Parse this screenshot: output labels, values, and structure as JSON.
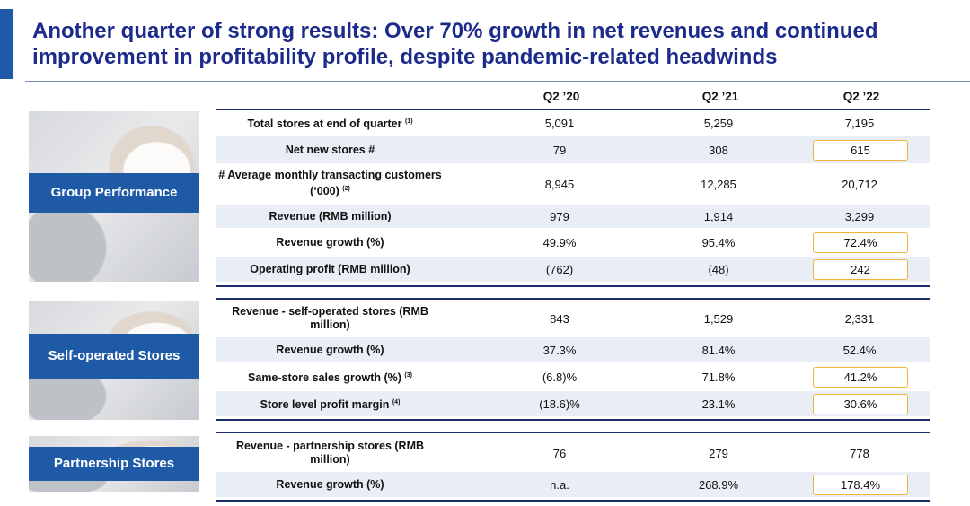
{
  "title": "Another quarter of strong results: Over 70% growth in net revenues and continued improvement in profitability profile, despite pandemic-related headwinds",
  "columns": [
    "Q2 ’20",
    "Q2 ’21",
    "Q2 ’22"
  ],
  "sections": {
    "group": {
      "label": "Group Performance",
      "rows": [
        {
          "metric": "Total stores at end of quarter",
          "note": "(1)",
          "v": [
            "5,091",
            "5,259",
            "7,195"
          ]
        },
        {
          "metric": "Net new stores #",
          "note": "",
          "v": [
            "79",
            "308",
            "615"
          ]
        },
        {
          "metric": "# Average monthly transacting customers (‘000)",
          "note": "(2)",
          "v": [
            "8,945",
            "12,285",
            "20,712"
          ]
        },
        {
          "metric": "Revenue (RMB million)",
          "note": "",
          "v": [
            "979",
            "1,914",
            "3,299"
          ]
        },
        {
          "metric": "Revenue growth (%)",
          "note": "",
          "v": [
            "49.9%",
            "95.4%",
            "72.4%"
          ]
        },
        {
          "metric": "Operating profit (RMB million)",
          "note": "",
          "v": [
            "(762)",
            "(48)",
            "242"
          ]
        }
      ]
    },
    "self": {
      "label": "Self-operated Stores",
      "rows": [
        {
          "metric": "Revenue - self-operated stores (RMB million)",
          "note": "",
          "v": [
            "843",
            "1,529",
            "2,331"
          ]
        },
        {
          "metric": "Revenue growth (%)",
          "note": "",
          "v": [
            "37.3%",
            "81.4%",
            "52.4%"
          ]
        },
        {
          "metric": "Same-store sales growth (%)",
          "note": "(3)",
          "v": [
            "(6.8)%",
            "71.8%",
            "41.2%"
          ]
        },
        {
          "metric": "Store level profit margin",
          "note": "(4)",
          "v": [
            "(18.6)%",
            "23.1%",
            "30.6%"
          ]
        }
      ]
    },
    "partner": {
      "label": "Partnership Stores",
      "rows": [
        {
          "metric": "Revenue - partnership stores (RMB million)",
          "note": "",
          "v": [
            "76",
            "279",
            "778"
          ]
        },
        {
          "metric": "Revenue growth (%)",
          "note": "",
          "v": [
            "n.a.",
            "268.9%",
            "178.4%"
          ]
        }
      ]
    }
  },
  "highlight_color": "#f0b33a"
}
